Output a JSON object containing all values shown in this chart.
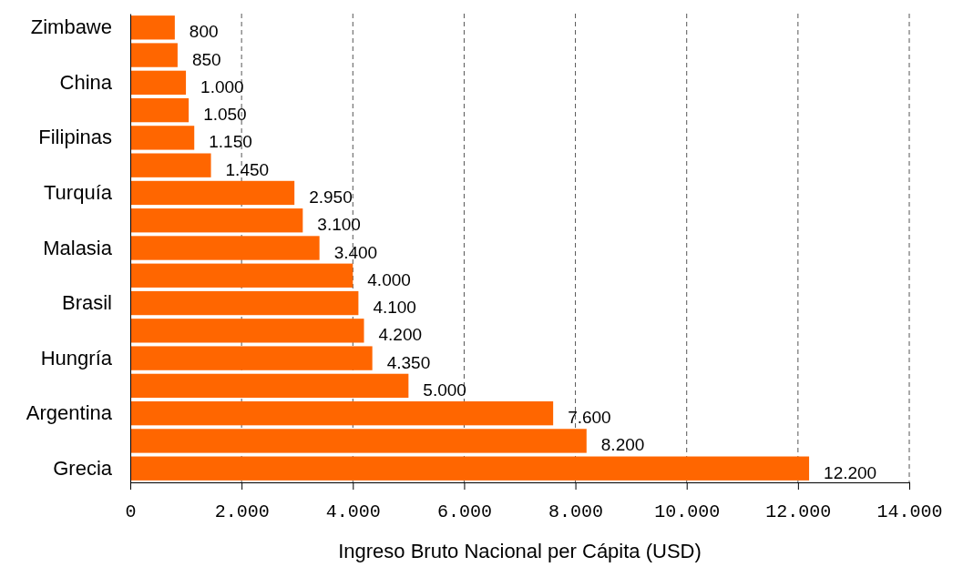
{
  "chart_data": {
    "type": "bar",
    "orientation": "horizontal",
    "xlabel": "Ingreso Bruto Nacional per Cápita (USD)",
    "categories": [
      "Zimbawe",
      null,
      "China",
      null,
      "Filipinas",
      null,
      "Turquía",
      null,
      "Malasia",
      null,
      "Brasil",
      null,
      "Hungría",
      null,
      "Argentina",
      null,
      "Grecia"
    ],
    "values": [
      800,
      850,
      1000,
      1050,
      1150,
      1450,
      2950,
      3100,
      3400,
      4000,
      4100,
      4200,
      4350,
      5000,
      7600,
      8200,
      12200
    ],
    "value_labels": [
      "800",
      "850",
      "1.000",
      "1.050",
      "1.150",
      "1.450",
      "2.950",
      "3.100",
      "3.400",
      "4.000",
      "4.100",
      "4.200",
      "4.350",
      "5.000",
      "7.600",
      "8.200",
      "12.200"
    ],
    "color": "#ff6600",
    "xlim": [
      0,
      14000
    ],
    "xticks": [
      0,
      {
        "value": 2000,
        "label": "2.000"
      },
      {
        "value": 4000,
        "label": "4.000"
      },
      {
        "value": 6000,
        "label": "6.000"
      },
      {
        "value": 8000,
        "label": "8.000"
      },
      {
        "value": 10000,
        "label": "10.000"
      },
      {
        "value": 12000,
        "label": "12.000"
      },
      {
        "value": 14000,
        "label": "14.000"
      }
    ],
    "grid": "x"
  }
}
